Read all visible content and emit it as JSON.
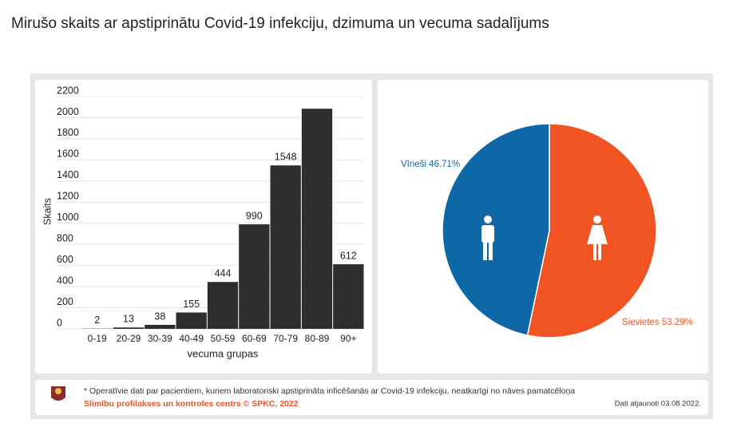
{
  "header": {
    "title": "Mirušo skaits ar apstiprinātu Covid-19 infekciju, dzimuma un vecuma sadalījums"
  },
  "chart_data": [
    {
      "type": "bar",
      "x_label": "vecuma grupas",
      "y_label": "Skaits",
      "categories": [
        "0-19",
        "20-29",
        "30-39",
        "40-49",
        "50-59",
        "60-69",
        "70-79",
        "80-89",
        "90+"
      ],
      "values": [
        2,
        13,
        38,
        155,
        444,
        990,
        1548,
        2085,
        612
      ],
      "value_labels": [
        "2",
        "13",
        "38",
        "155",
        "444",
        "990",
        "1548",
        null,
        "612"
      ],
      "color": "#2e2e2e",
      "ylim": [
        0,
        2200
      ],
      "yticks": [
        0,
        200,
        400,
        600,
        800,
        1000,
        1200,
        1400,
        1600,
        1800,
        2000,
        2200
      ],
      "grid": true
    },
    {
      "type": "pie",
      "categories": [
        "Vīrieši",
        "Sievietes"
      ],
      "values": [
        46.71,
        53.29
      ],
      "value_labels": [
        "46.71%",
        "53.29%"
      ],
      "colors": [
        "#0f68a6",
        "#f05423"
      ]
    }
  ],
  "footer": {
    "note": "* Operatīvie dati par pacientiem, kuriem laboratoriski apstiprināta inficēšanās ar Covid-19 infekciju, neatkarīgi no nāves pamatcēloņa",
    "source": "Slimību profilakses un kontroles centrs © SPKC, 2022",
    "updated": "Dati atjaunoti 03.08.2022."
  }
}
